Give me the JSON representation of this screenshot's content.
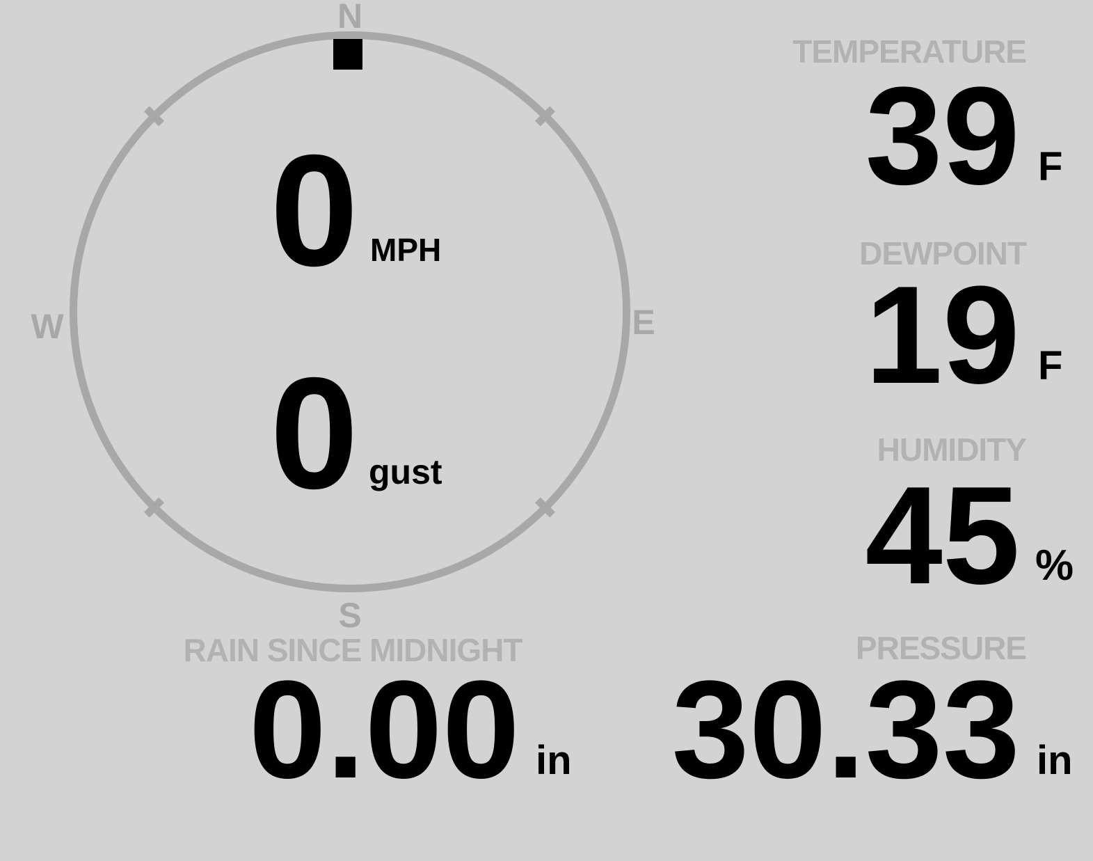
{
  "station": {
    "wind": {
      "speed": {
        "value": "0",
        "unit": "MPH"
      },
      "gust": {
        "value": "0",
        "unit": "gust"
      },
      "direction": "N",
      "compass": {
        "n": "N",
        "e": "E",
        "s": "S",
        "w": "W"
      }
    },
    "metrics": {
      "temperature": {
        "label": "TEMPERATURE",
        "value": "39",
        "unit": "F"
      },
      "dewpoint": {
        "label": "DEWPOINT",
        "value": "19",
        "unit": "F"
      },
      "humidity": {
        "label": "HUMIDITY",
        "value": "45",
        "unit": "%"
      },
      "pressure": {
        "label": "PRESSURE",
        "value": "30.33",
        "unit": "in"
      },
      "rain_since_midnight": {
        "label": "RAIN SINCE MIDNIGHT",
        "value": "0.00",
        "unit": "in"
      }
    }
  },
  "colors": {
    "background": "#d3d3d3",
    "dial": "#a8a8a8",
    "label": "#b2b2b2",
    "value": "#000000"
  }
}
